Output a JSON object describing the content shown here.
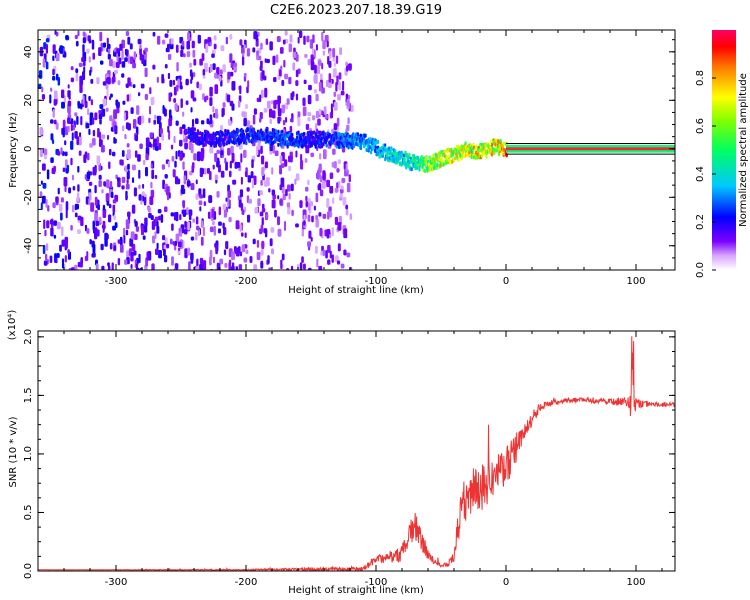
{
  "title": "C2E6.2023.207.18.39.G19",
  "colors": {
    "snr_line": "#ee3333",
    "frame": "#000000"
  },
  "chart_data": [
    {
      "type": "heatmap",
      "xlabel": "Height of straight line (km)",
      "ylabel": "Frequency (Hz)",
      "xlim": [
        -360,
        130
      ],
      "ylim": [
        -50,
        49
      ],
      "xticks": [
        -300,
        -200,
        -100,
        0,
        100
      ],
      "xtick_labels": [
        "-300",
        "-200",
        "-100",
        "0",
        "100"
      ],
      "yticks": [
        -40,
        -20,
        0,
        20,
        40
      ],
      "ytick_labels": [
        "-40",
        "-20",
        "0",
        "20",
        "40"
      ],
      "colorbar": {
        "label": "Normalized spectral amplitude",
        "range": [
          0,
          1
        ],
        "ticks": [
          0.0,
          0.2,
          0.4,
          0.6,
          0.8
        ],
        "tick_labels": [
          "0.0",
          "0.2",
          "0.4",
          "0.6",
          "0.8"
        ]
      },
      "ridge": {
        "x": [
          -245,
          -230,
          -210,
          -190,
          -170,
          -150,
          -130,
          -110,
          -95,
          -80,
          -70,
          -60,
          -50,
          -40,
          -30,
          -20,
          -10,
          -5,
          0,
          95,
          130
        ],
        "y": [
          6,
          4,
          5,
          6,
          4,
          4,
          4,
          3,
          -1,
          -4,
          -6,
          -6,
          -4,
          -2,
          0,
          -1,
          1,
          1,
          0,
          0,
          0
        ],
        "amplitude": [
          0.25,
          0.2,
          0.25,
          0.28,
          0.3,
          0.22,
          0.3,
          0.35,
          0.4,
          0.45,
          0.5,
          0.7,
          0.75,
          0.75,
          0.8,
          0.8,
          0.8,
          0.85,
          0.95,
          0.95,
          0.95
        ]
      },
      "background_noise": {
        "xlim": [
          -360,
          -120
        ],
        "amplitude": [
          0.05,
          0.25
        ]
      }
    },
    {
      "type": "line",
      "xlabel": "Height of straight line (km)",
      "ylabel": "SNR (10 * v/v)",
      "yscale_label": "(x10⁴)",
      "xlim": [
        -360,
        130
      ],
      "ylim": [
        0,
        2.05
      ],
      "xticks": [
        -300,
        -200,
        -100,
        0,
        100
      ],
      "xtick_labels": [
        "-300",
        "-200",
        "-100",
        "0",
        "100"
      ],
      "yticks": [
        0,
        0.5,
        1.0,
        1.5,
        2.0
      ],
      "ytick_labels": [
        "0.0",
        "0.5",
        "1.0",
        "1.5",
        "2.0"
      ],
      "series": [
        {
          "x": [
            -360,
            -200,
            -110,
            -100,
            -90,
            -80,
            -75,
            -70,
            -65,
            -60,
            -55,
            -50,
            -45,
            -40,
            -35,
            -30,
            -25,
            -20,
            -15,
            -10,
            -5,
            0,
            5,
            10,
            15,
            20,
            25,
            30,
            40,
            50,
            60,
            70,
            80,
            90,
            95,
            97,
            100,
            110,
            120,
            130
          ],
          "y": [
            0.01,
            0.01,
            0.02,
            0.1,
            0.12,
            0.15,
            0.3,
            0.4,
            0.25,
            0.15,
            0.08,
            0.05,
            0.05,
            0.15,
            0.5,
            0.65,
            0.7,
            0.7,
            0.75,
            0.8,
            0.85,
            0.9,
            1.0,
            1.1,
            1.2,
            1.3,
            1.38,
            1.42,
            1.45,
            1.46,
            1.46,
            1.45,
            1.44,
            1.45,
            1.44,
            1.43,
            1.43,
            1.43,
            1.42,
            1.42
          ],
          "noise": [
            0.0,
            0.005,
            0.02,
            0.04,
            0.05,
            0.07,
            0.12,
            0.12,
            0.1,
            0.06,
            0.03,
            0.02,
            0.02,
            0.06,
            0.18,
            0.2,
            0.2,
            0.2,
            0.2,
            0.18,
            0.18,
            0.18,
            0.15,
            0.1,
            0.08,
            0.06,
            0.04,
            0.03,
            0.02,
            0.02,
            0.02,
            0.02,
            0.03,
            0.04,
            0.05,
            0.35,
            0.04,
            0.02,
            0.02,
            0.02
          ]
        }
      ]
    }
  ]
}
